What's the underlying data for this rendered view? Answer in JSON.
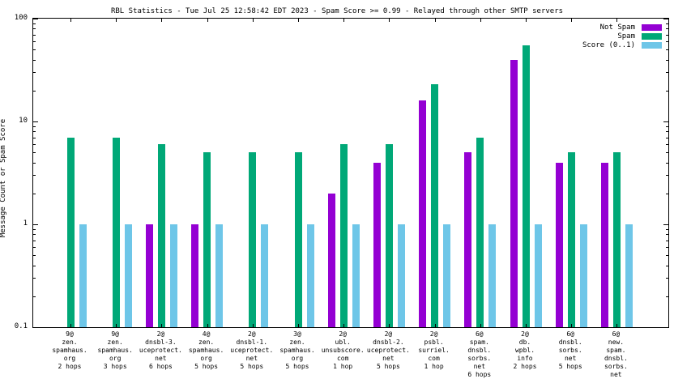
{
  "title": "RBL Statistics - Tue Jul 25 12:58:42 EDT 2023 - Spam Score >= 0.99 - Relayed through other SMTP servers",
  "ylabel": "Message Count or Spam Score",
  "ytick_labels": [
    "100",
    "10",
    "1",
    "0.1"
  ],
  "colors": {
    "not_spam": "#9400d3",
    "spam": "#00a877",
    "score": "#6ec6e8",
    "axis": "#000000",
    "background": "#ffffff"
  },
  "chart_data": {
    "type": "bar",
    "scale": "log",
    "title": "RBL Statistics - Tue Jul 25 12:58:42 EDT 2023 - Spam Score >= 0.99 - Relayed through other SMTP servers",
    "xlabel": "",
    "ylabel": "Message Count or Spam Score",
    "ylim": [
      0.1,
      100
    ],
    "yticks": [
      0.1,
      1,
      10,
      100
    ],
    "grid": false,
    "legend_position": "top-right",
    "categories": [
      [
        "9@",
        "zen.",
        "spamhaus.",
        "org",
        "2 hops"
      ],
      [
        "9@",
        "zen.",
        "spamhaus.",
        "org",
        "3 hops"
      ],
      [
        "2@",
        "dnsbl-3.",
        "uceprotect.",
        "net",
        "6 hops"
      ],
      [
        "4@",
        "zen.",
        "spamhaus.",
        "org",
        "5 hops"
      ],
      [
        "2@",
        "dnsbl-1.",
        "uceprotect.",
        "net",
        "5 hops"
      ],
      [
        "3@",
        "zen.",
        "spamhaus.",
        "org",
        "5 hops"
      ],
      [
        "2@",
        "ubl.",
        "unsubscore.",
        "com",
        "1 hop"
      ],
      [
        "2@",
        "dnsbl-2.",
        "uceprotect.",
        "net",
        "5 hops"
      ],
      [
        "2@",
        "psbl.",
        "surriel.",
        "com",
        "1 hop"
      ],
      [
        "6@",
        "spam.",
        "dnsbl.",
        "sorbs.",
        "net",
        "6 hops"
      ],
      [
        "2@",
        "db.",
        "wpbl.",
        "info",
        "2 hops"
      ],
      [
        "6@",
        "dnsbl.",
        "sorbs.",
        "net",
        "5 hops"
      ],
      [
        "6@",
        "new.",
        "spam.",
        "dnsbl.",
        "sorbs.",
        "net",
        "5 hops"
      ]
    ],
    "series": [
      {
        "name": "Not Spam",
        "color": "#9400d3",
        "values": [
          null,
          null,
          1,
          1,
          null,
          null,
          2,
          4,
          16,
          5,
          40,
          4,
          4
        ]
      },
      {
        "name": "Spam",
        "color": "#00a877",
        "values": [
          7,
          7,
          6,
          5,
          5,
          5,
          6,
          6,
          23,
          7,
          55,
          5,
          5
        ]
      },
      {
        "name": "Score (0..1)",
        "color": "#6ec6e8",
        "values": [
          1,
          1,
          1,
          1,
          1,
          1,
          1,
          1,
          1,
          1,
          1,
          1,
          1
        ]
      }
    ]
  }
}
